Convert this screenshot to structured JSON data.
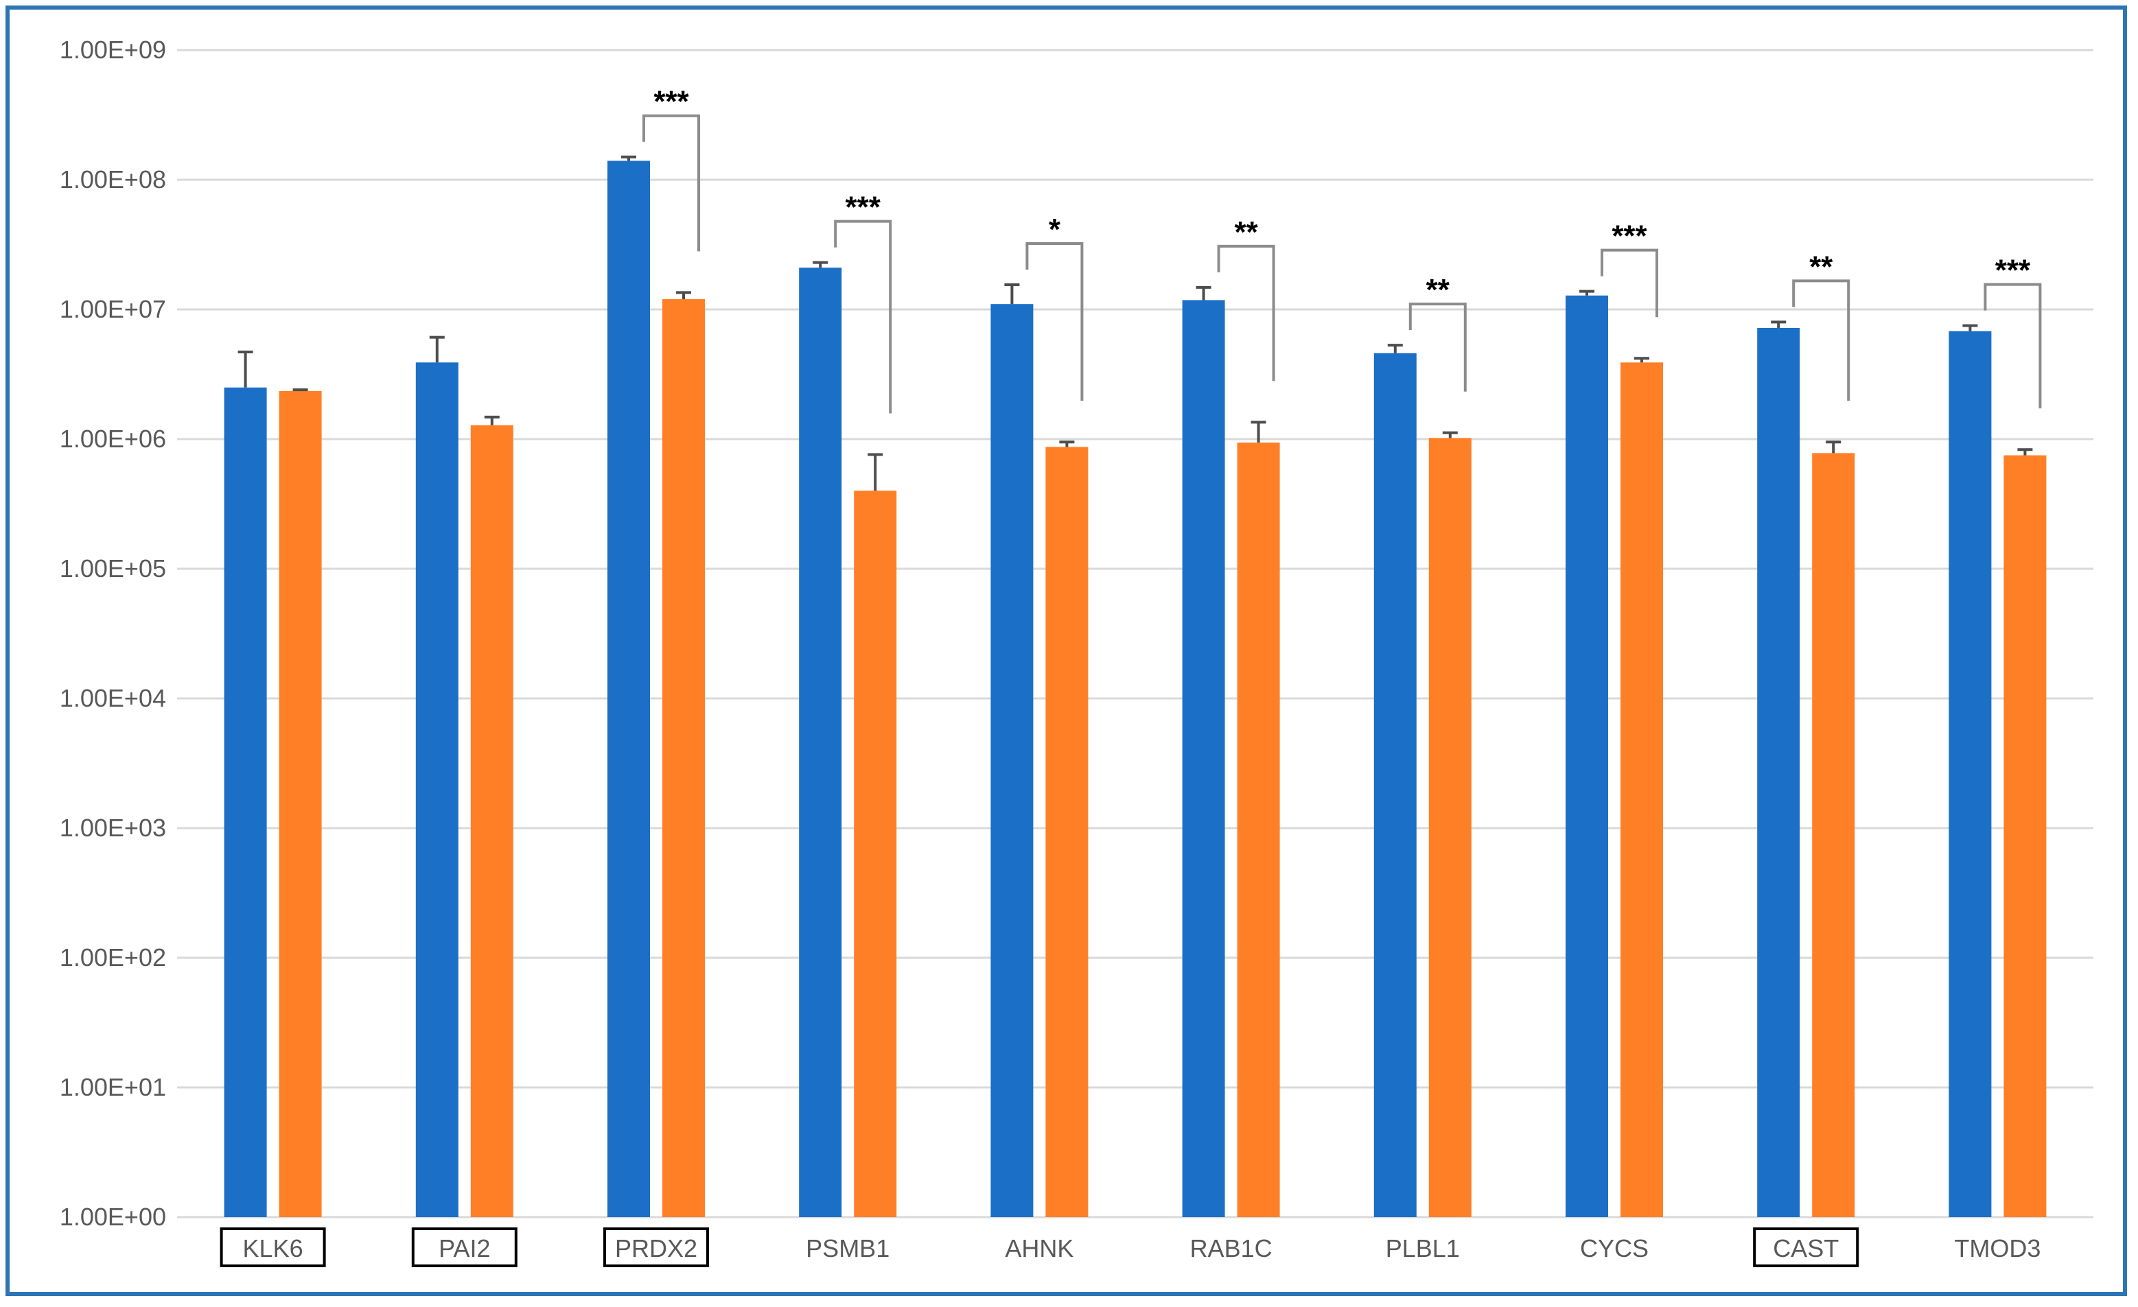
{
  "chart_data": {
    "type": "bar",
    "title": "",
    "xlabel": "",
    "ylabel": "",
    "y_scale": "log10",
    "ylim": [
      1,
      1000000000
    ],
    "y_tick_labels": [
      "1.00E+00",
      "1.00E+01",
      "1.00E+02",
      "1.00E+03",
      "1.00E+04",
      "1.00E+05",
      "1.00E+06",
      "1.00E+07",
      "1.00E+08",
      "1.00E+09"
    ],
    "grid": true,
    "legend": "none",
    "categories": [
      "KLK6",
      "PAI2",
      "PRDX2",
      "PSMB1",
      "AHNK",
      "RAB1C",
      "PLBL1",
      "CYCS",
      "CAST",
      "TMOD3"
    ],
    "boxed_categories": [
      "KLK6",
      "PAI2",
      "PRDX2",
      "CAST"
    ],
    "series": [
      {
        "color": "#1b6fc6",
        "values": [
          2500000,
          3900000,
          140000000,
          21000000,
          11000000,
          11800000,
          4600000,
          12800000,
          7200000,
          6800000
        ],
        "error_upper": [
          4700000,
          6100000,
          150000000,
          23000000,
          15500000,
          14800000,
          5300000,
          13800000,
          8000000,
          7500000
        ]
      },
      {
        "color": "#ff7f27",
        "values": [
          2350000,
          1280000,
          12000000,
          400000,
          870000,
          940000,
          1020000,
          3900000,
          780000,
          750000
        ],
        "error_upper": [
          2400000,
          1480000,
          13500000,
          760000,
          950000,
          1350000,
          1120000,
          4200000,
          950000,
          830000
        ]
      }
    ],
    "significance": [
      "",
      "",
      "***",
      "***",
      "*",
      "**",
      "**",
      "***",
      "**",
      "***"
    ]
  },
  "colors": {
    "frame": "#2e75b6",
    "grid": "#d9d9d9",
    "axis_text": "#595959",
    "bracket": "#8c8c8c",
    "error_bar": "#4d4d4d"
  }
}
